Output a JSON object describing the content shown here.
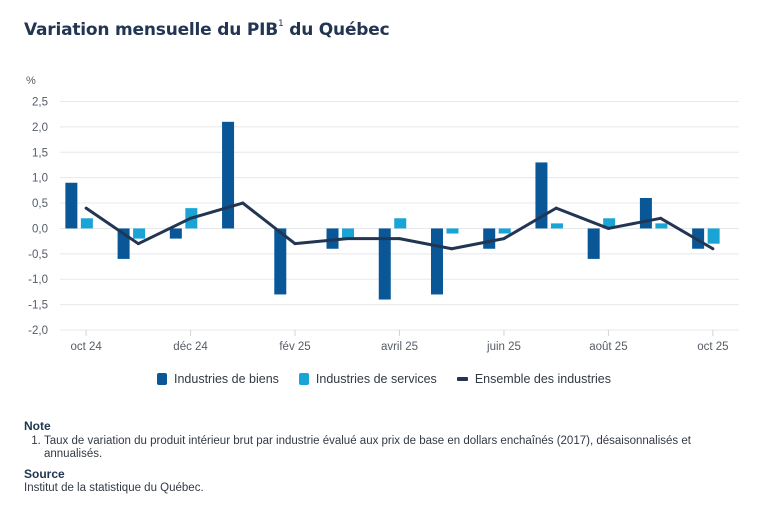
{
  "title": "Variation mensuelle du PIB",
  "title_footnote_marker": "1",
  "title_suffix": "du Québec",
  "chart_data": {
    "type": "bar",
    "title": "Variation mensuelle du PIB du Québec",
    "ylabel": "%",
    "xlabel": "",
    "ylim": [
      -2.0,
      2.5
    ],
    "yticks": [
      2.5,
      2.0,
      1.5,
      1.0,
      0.5,
      0.0,
      -0.5,
      -1.0,
      -1.5,
      -2.0
    ],
    "ytick_labels": [
      "2,5",
      "2,0",
      "1,5",
      "1,0",
      "0,5",
      "0,0",
      "-0,5",
      "-1,0",
      "-1,5",
      "-2,0"
    ],
    "grid": true,
    "categories": [
      "oct 24",
      "nov 24",
      "déc 24",
      "janv 25",
      "fév 25",
      "mars 25",
      "avril 25",
      "mai 25",
      "juin 25",
      "juil 25",
      "août 25",
      "sept 25",
      "oct 25"
    ],
    "xtick_labels": [
      {
        "index": 0,
        "label": "oct 24"
      },
      {
        "index": 2,
        "label": "déc 24"
      },
      {
        "index": 4,
        "label": "fév 25"
      },
      {
        "index": 6,
        "label": "avril 25"
      },
      {
        "index": 8,
        "label": "juin 25"
      },
      {
        "index": 10,
        "label": "août 25"
      },
      {
        "index": 12,
        "label": "oct 25"
      }
    ],
    "series": [
      {
        "name": "Industries de biens",
        "type": "bar",
        "color": "#095797",
        "values": [
          0.9,
          -0.6,
          -0.2,
          2.1,
          -1.3,
          -0.4,
          -1.4,
          -1.3,
          -0.4,
          1.3,
          -0.6,
          0.6,
          -0.4
        ]
      },
      {
        "name": "Industries de services",
        "type": "bar",
        "color": "#19a4d6",
        "values": [
          0.2,
          -0.2,
          0.4,
          0.0,
          0.0,
          -0.2,
          0.2,
          -0.1,
          -0.1,
          0.1,
          0.2,
          0.1,
          -0.3
        ]
      },
      {
        "name": "Ensemble des industries",
        "type": "line",
        "color": "#223654",
        "values": [
          0.4,
          -0.3,
          0.2,
          0.5,
          -0.3,
          -0.2,
          -0.2,
          -0.4,
          -0.2,
          0.4,
          0.0,
          0.2,
          -0.4
        ]
      }
    ],
    "legend_position": "bottom"
  },
  "legend": [
    {
      "label": "Industries de biens",
      "color": "#095797"
    },
    {
      "label": "Industries de services",
      "color": "#19a4d6"
    },
    {
      "label": "Ensemble des industries",
      "color": "#223654"
    }
  ],
  "notes": {
    "note_heading": "Note",
    "items": [
      "Taux de variation du produit intérieur brut par industrie évalué aux prix de base en dollars enchaînés (2017), désaisonnalisés et annualisés."
    ],
    "source_heading": "Source",
    "source_text": "Institut de la statistique du Québec."
  }
}
